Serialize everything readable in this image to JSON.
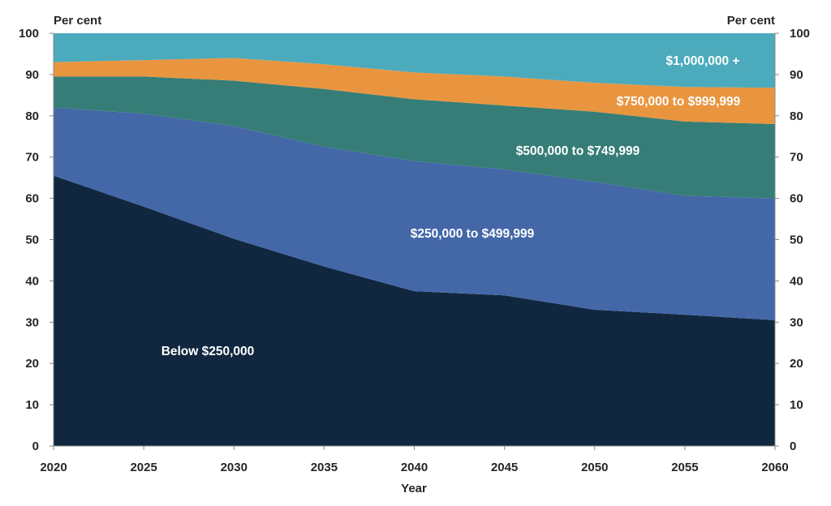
{
  "chart_data": {
    "type": "area",
    "stacked": true,
    "title": "",
    "xlabel": "Year",
    "ylabel_left": "Per cent",
    "ylabel_right": "Per cent",
    "xlim": [
      2020,
      2060
    ],
    "ylim": [
      0,
      100
    ],
    "x_ticks": [
      2020,
      2025,
      2030,
      2035,
      2040,
      2045,
      2050,
      2055,
      2060
    ],
    "y_ticks": [
      0,
      10,
      20,
      30,
      40,
      50,
      60,
      70,
      80,
      90,
      100
    ],
    "grid": false,
    "legend": "labels inside areas",
    "x": [
      2020,
      2025,
      2030,
      2035,
      2040,
      2045,
      2050,
      2055,
      2060
    ],
    "series": [
      {
        "name": "Below $250,000",
        "color": "#10273f",
        "values": [
          65.5,
          58.0,
          50.2,
          43.5,
          37.5,
          36.5,
          33.0,
          31.8,
          30.5
        ]
      },
      {
        "name": "$250,000 to $499,999",
        "color": "#4467a8",
        "values": [
          16.5,
          22.5,
          27.3,
          29.0,
          31.5,
          30.5,
          31.0,
          28.8,
          29.5
        ]
      },
      {
        "name": "$500,000 to $749,999",
        "color": "#367d78",
        "values": [
          7.5,
          9.0,
          11.0,
          14.0,
          15.0,
          15.5,
          17.0,
          18.0,
          18.0
        ]
      },
      {
        "name": "$750,000 to $999,999",
        "color": "#e9953f",
        "values": [
          3.5,
          4.0,
          5.5,
          6.0,
          6.5,
          7.0,
          7.0,
          8.4,
          8.8
        ]
      },
      {
        "name": "$1,000,000 +",
        "color": "#4babbc",
        "values": [
          7.0,
          6.5,
          6.0,
          7.5,
          9.5,
          10.5,
          12.0,
          13.0,
          13.2
        ]
      }
    ]
  }
}
